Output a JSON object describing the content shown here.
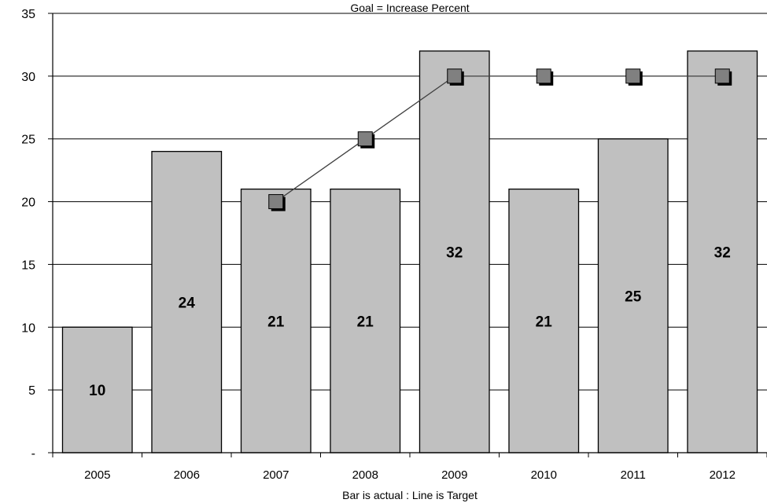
{
  "chart_data": {
    "type": "bar",
    "title": "Goal = Increase Percent",
    "xlabel": "Bar is actual  :  Line is Target",
    "ylabel": "",
    "categories": [
      "2005",
      "2006",
      "2007",
      "2008",
      "2009",
      "2010",
      "2011",
      "2012"
    ],
    "ylim": [
      0,
      35
    ],
    "yticks": [
      {
        "value": 0,
        "label": "-"
      },
      {
        "value": 5,
        "label": "5"
      },
      {
        "value": 10,
        "label": "10"
      },
      {
        "value": 15,
        "label": "15"
      },
      {
        "value": 20,
        "label": "20"
      },
      {
        "value": 25,
        "label": "25"
      },
      {
        "value": 30,
        "label": "30"
      },
      {
        "value": 35,
        "label": "35"
      }
    ],
    "grid": true,
    "legend": "none",
    "series": [
      {
        "type": "bar",
        "values": [
          10,
          24,
          21,
          21,
          32,
          21,
          25,
          32
        ],
        "data_labels": [
          "10",
          "24",
          "21",
          "21",
          "32",
          "21",
          "25",
          "32"
        ],
        "color": "#c0c0c0"
      },
      {
        "type": "line",
        "values": [
          null,
          null,
          20,
          25,
          30,
          30,
          30,
          30
        ],
        "color": "#808080"
      }
    ]
  }
}
